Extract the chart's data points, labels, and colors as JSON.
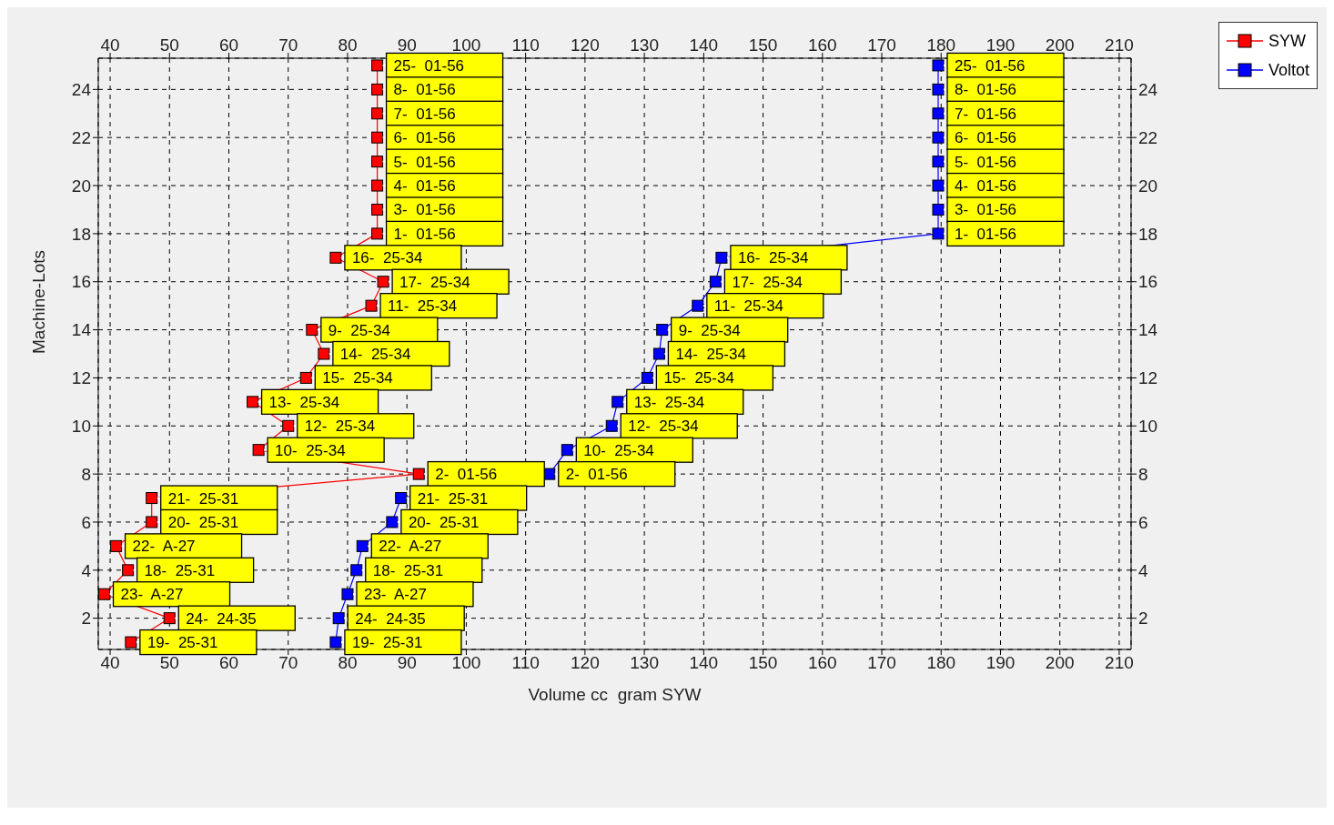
{
  "chart_data": {
    "type": "line",
    "xlabel": "Volume cc  gram SYW",
    "ylabel": "Machine-Lots",
    "xlim": [
      38,
      212
    ],
    "xticks": [
      40,
      50,
      60,
      70,
      80,
      90,
      100,
      110,
      120,
      130,
      140,
      150,
      160,
      170,
      180,
      190,
      200,
      210
    ],
    "x2lim": [
      38,
      212
    ],
    "x2ticks": [
      40,
      50,
      60,
      70,
      80,
      90,
      100,
      110,
      120,
      130,
      140,
      150,
      160,
      170,
      180,
      190,
      200,
      210
    ],
    "ylim": [
      0.7,
      25.3
    ],
    "yticks": [
      2,
      4,
      6,
      8,
      10,
      12,
      14,
      16,
      18,
      20,
      22,
      24
    ],
    "y2lim": [
      0.7,
      25.3
    ],
    "y2ticks": [
      2,
      4,
      6,
      8,
      10,
      12,
      14,
      16,
      18,
      20,
      22,
      24
    ],
    "grid": true,
    "legend": "top right",
    "marker": "square",
    "line_style": "solid",
    "series": [
      {
        "name": "SYW",
        "color": "#ff0000",
        "x": [
          85,
          85,
          85,
          85,
          85,
          85,
          85,
          85,
          78,
          86,
          84,
          74,
          76,
          73,
          64,
          70,
          65,
          92,
          47,
          47,
          41,
          43,
          39,
          50,
          43.5
        ],
        "values": [
          25,
          24,
          23,
          22,
          21,
          20,
          19,
          18,
          17,
          16,
          15,
          14,
          13,
          12,
          11,
          10,
          9,
          8,
          7,
          6,
          5,
          4,
          3,
          2,
          1
        ]
      },
      {
        "name": "Voltot",
        "color": "#0000ff",
        "x": [
          179.5,
          179.5,
          179.5,
          179.5,
          179.5,
          179.5,
          179.5,
          179.5,
          143,
          142,
          139,
          133,
          132.5,
          130.5,
          125.5,
          124.5,
          117,
          114,
          89,
          87.5,
          82.5,
          81.5,
          80,
          78.5,
          78
        ],
        "values": [
          25,
          24,
          23,
          22,
          21,
          20,
          19,
          18,
          17,
          16,
          15,
          14,
          13,
          12,
          11,
          10,
          9,
          8,
          7,
          6,
          5,
          4,
          3,
          2,
          1
        ]
      }
    ],
    "annotations": [
      {
        "text": "25-  01-56",
        "x": 85,
        "y": 25
      },
      {
        "text": "8-  01-56",
        "x": 85,
        "y": 24
      },
      {
        "text": "7-  01-56",
        "x": 85,
        "y": 23
      },
      {
        "text": "6-  01-56",
        "x": 85,
        "y": 22
      },
      {
        "text": "5-  01-56",
        "x": 85,
        "y": 21
      },
      {
        "text": "4-  01-56",
        "x": 85,
        "y": 20
      },
      {
        "text": "3-  01-56",
        "x": 85,
        "y": 19
      },
      {
        "text": "1-  01-56",
        "x": 85,
        "y": 18
      },
      {
        "text": "16-  25-34",
        "x": 78,
        "y": 17
      },
      {
        "text": "17-  25-34",
        "x": 86,
        "y": 16
      },
      {
        "text": "11-  25-34",
        "x": 84,
        "y": 15
      },
      {
        "text": "9-  25-34",
        "x": 74,
        "y": 14
      },
      {
        "text": "14-  25-34",
        "x": 76,
        "y": 13
      },
      {
        "text": "15-  25-34",
        "x": 73,
        "y": 12
      },
      {
        "text": "13-  25-34",
        "x": 64,
        "y": 11
      },
      {
        "text": "12-  25-34",
        "x": 70,
        "y": 10
      },
      {
        "text": "10-  25-34",
        "x": 65,
        "y": 9
      },
      {
        "text": "2-  01-56",
        "x": 92,
        "y": 8
      },
      {
        "text": "21-  25-31",
        "x": 47,
        "y": 7
      },
      {
        "text": "20-  25-31",
        "x": 47,
        "y": 6
      },
      {
        "text": "22-  A-27",
        "x": 41,
        "y": 5
      },
      {
        "text": "18-  25-31",
        "x": 43,
        "y": 4
      },
      {
        "text": "23-  A-27",
        "x": 39,
        "y": 3
      },
      {
        "text": "24-  24-35",
        "x": 50,
        "y": 2
      },
      {
        "text": "19-  25-31",
        "x": 43.5,
        "y": 1
      },
      {
        "text": "25-  01-56",
        "x": 179.5,
        "y": 25
      },
      {
        "text": "8-  01-56",
        "x": 179.5,
        "y": 24
      },
      {
        "text": "7-  01-56",
        "x": 179.5,
        "y": 23
      },
      {
        "text": "6-  01-56",
        "x": 179.5,
        "y": 22
      },
      {
        "text": "5-  01-56",
        "x": 179.5,
        "y": 21
      },
      {
        "text": "4-  01-56",
        "x": 179.5,
        "y": 20
      },
      {
        "text": "3-  01-56",
        "x": 179.5,
        "y": 19
      },
      {
        "text": "1-  01-56",
        "x": 179.5,
        "y": 18
      },
      {
        "text": "16-  25-34",
        "x": 143,
        "y": 17
      },
      {
        "text": "17-  25-34",
        "x": 142,
        "y": 16
      },
      {
        "text": "11-  25-34",
        "x": 139,
        "y": 15
      },
      {
        "text": "9-  25-34",
        "x": 133,
        "y": 14
      },
      {
        "text": "14-  25-34",
        "x": 132.5,
        "y": 13
      },
      {
        "text": "15-  25-34",
        "x": 130.5,
        "y": 12
      },
      {
        "text": "13-  25-34",
        "x": 125.5,
        "y": 11
      },
      {
        "text": "12-  25-34",
        "x": 124.5,
        "y": 10
      },
      {
        "text": "10-  25-34",
        "x": 117,
        "y": 9
      },
      {
        "text": "2-  01-56",
        "x": 114,
        "y": 8
      },
      {
        "text": "21-  25-31",
        "x": 89,
        "y": 7
      },
      {
        "text": "20-  25-31",
        "x": 87.5,
        "y": 6
      },
      {
        "text": "22-  A-27",
        "x": 82.5,
        "y": 5
      },
      {
        "text": "18-  25-31",
        "x": 81.5,
        "y": 4
      },
      {
        "text": "23-  A-27",
        "x": 80,
        "y": 3
      },
      {
        "text": "24-  24-35",
        "x": 78.5,
        "y": 2
      },
      {
        "text": "19-  25-31",
        "x": 78,
        "y": 1
      }
    ]
  }
}
